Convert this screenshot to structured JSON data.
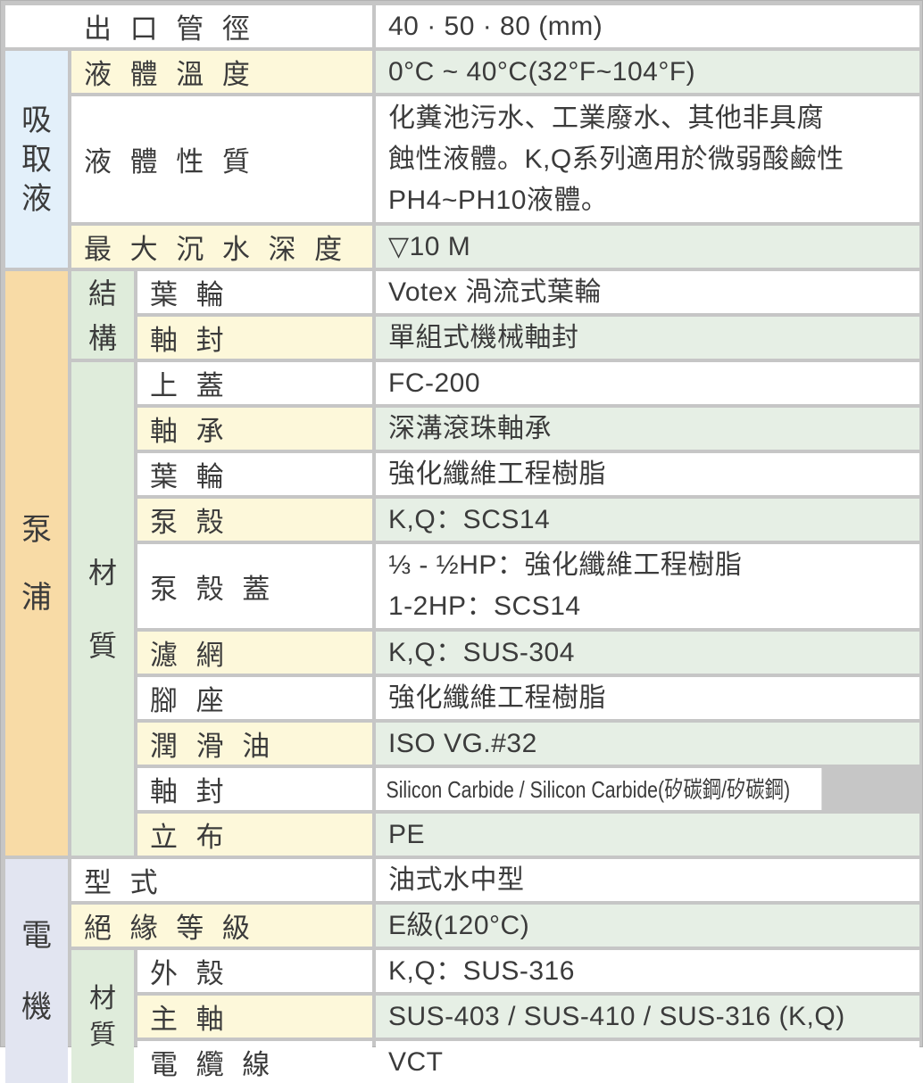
{
  "colors": {
    "grid_line": "#c6c6c6",
    "label_yellow": "#fdf8da",
    "value_green": "#e6efe5",
    "section_suction_blue": "#e3f0fa",
    "section_pump_orange": "#f8dba6",
    "section_motor_lavender": "#e2e5f1",
    "subsection_green": "#dfecdb",
    "text": "#3b3b3b"
  },
  "table": {
    "sections": {
      "suction": {
        "label": "吸取液"
      },
      "pump": {
        "label": "泵浦"
      },
      "motor": {
        "label": "電機"
      }
    },
    "subsections": {
      "pump_structure": {
        "label": "結構"
      },
      "pump_material": {
        "label": "材質"
      },
      "motor_material": {
        "label": "材質"
      }
    },
    "rows": {
      "outlet": {
        "label": "出 口 管 徑",
        "value": "40 · 50 · 80 (mm)"
      },
      "liquid_temp": {
        "label": "液 體 溫 度",
        "value": "0°C ~ 40°C(32°F~104°F)"
      },
      "liquid_nature": {
        "label": "液 體 性 質",
        "value": "化糞池污水、工業廢水、其他非具腐\n蝕性液體。K,Q系列適用於微弱酸鹼性\nPH4~PH10液體。"
      },
      "max_depth": {
        "label": "最 大 沉 水 深 度",
        "value": "▽10 M"
      },
      "impeller_structure": {
        "label": "葉  輪",
        "value": "Votex 渦流式葉輪"
      },
      "shaft_seal_structure": {
        "label": "軸  封",
        "value": "單組式機械軸封"
      },
      "top_cover": {
        "label": "上  蓋",
        "value": "FC-200"
      },
      "bearing": {
        "label": "軸  承",
        "value": "深溝滾珠軸承"
      },
      "impeller_material": {
        "label": "葉  輪",
        "value": "強化纖維工程樹脂"
      },
      "pump_casing": {
        "label": "泵  殼",
        "value": "K,Q：SCS14"
      },
      "casing_cover": {
        "label": "泵 殼 蓋",
        "value": "⅓ - ½HP：強化纖維工程樹脂\n1-2HP：SCS14"
      },
      "strainer": {
        "label": "濾  網",
        "value": "K,Q：SUS-304"
      },
      "foot_base": {
        "label": "腳  座",
        "value": "強化纖維工程樹脂"
      },
      "lubricant": {
        "label": "潤 滑 油",
        "value": "ISO VG.#32"
      },
      "shaft_seal_material": {
        "label": "軸  封",
        "value": "Silicon Carbide / Silicon Carbide(矽碳鋼/矽碳鋼)"
      },
      "stand_cloth": {
        "label": "立  布",
        "value": "PE"
      },
      "motor_type": {
        "label": "型 式",
        "value": "油式水中型"
      },
      "insulation": {
        "label": "絕 緣 等 級",
        "value": "E級(120°C)"
      },
      "outer_shell": {
        "label": "外  殼",
        "value": "K,Q：SUS-316"
      },
      "main_shaft": {
        "label": "主  軸",
        "value": "SUS-403 / SUS-410 / SUS-316 (K,Q)"
      },
      "cable": {
        "label": "電 纜 線",
        "value": "VCT"
      }
    }
  }
}
